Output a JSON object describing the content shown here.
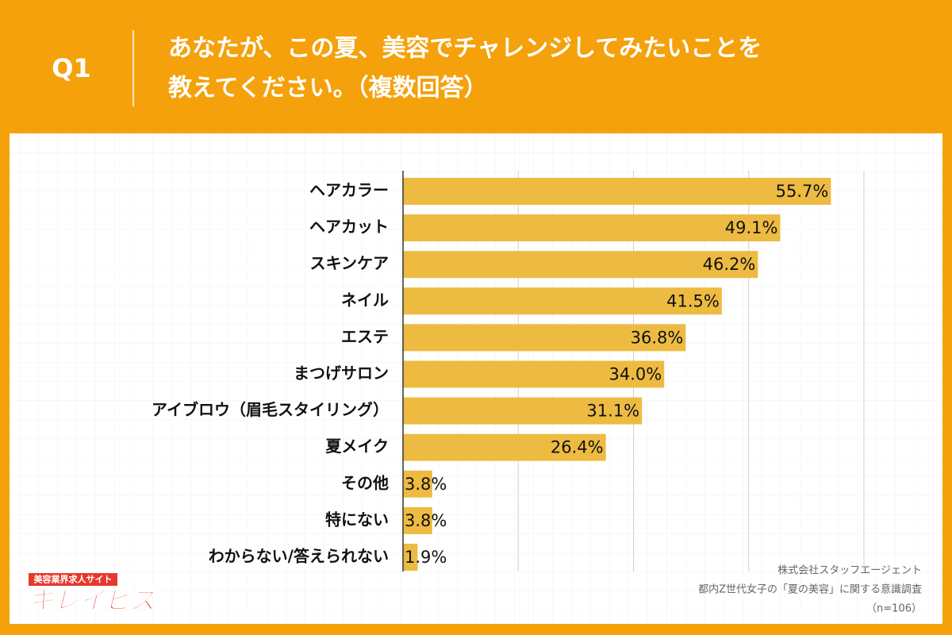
{
  "header": {
    "question": "Q1",
    "title": [
      "あなたが、この夏、美容でチャレンジしてみたいことを",
      "教えてください。（複数回答）"
    ]
  },
  "chart_data": {
    "type": "bar",
    "orientation": "horizontal",
    "categories": [
      "ヘアカラー",
      "ヘアカット",
      "スキンケア",
      "ネイル",
      "エステ",
      "まつげサロン",
      "アイブロウ（眉毛スタイリング）",
      "夏メイク",
      "その他",
      "特にない",
      "わからない/答えられない"
    ],
    "values": [
      55.7,
      49.1,
      46.2,
      41.5,
      36.8,
      34.0,
      31.1,
      26.4,
      3.8,
      3.8,
      1.9
    ],
    "value_labels": [
      "55.7%",
      "49.1%",
      "46.2%",
      "41.5%",
      "36.8%",
      "34.0%",
      "31.1%",
      "26.4%",
      "3.8%",
      "3.8%",
      "1.9%"
    ],
    "color": "#edbb42",
    "xlim": [
      0,
      60
    ],
    "xticks": [
      0,
      15,
      30,
      45,
      60
    ],
    "grid": true
  },
  "footer": {
    "logo_tagline": "美容業界求人サイト",
    "logo_name": "キレイビズ",
    "source": [
      "株式会社スタッフエージェント",
      "都内Z世代女子の「夏の美容」に関する意識調査",
      "（n=106）"
    ]
  }
}
